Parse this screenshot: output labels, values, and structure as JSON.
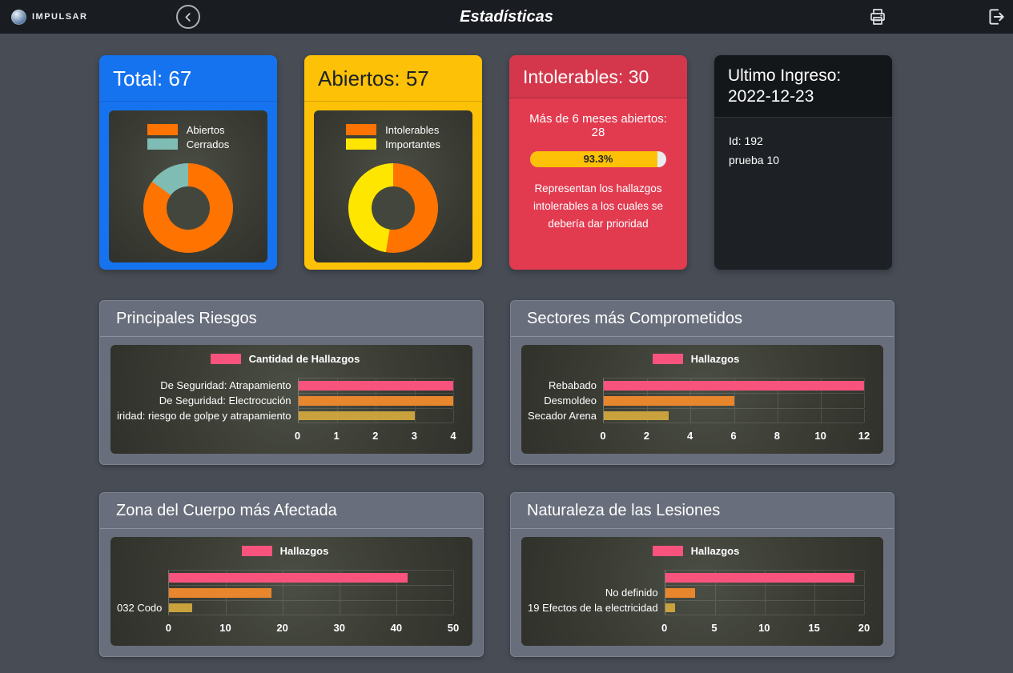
{
  "header": {
    "brand": "IMPULSAR",
    "title": "Estadísticas",
    "icons": {
      "back": "chevron-left",
      "print": "printer",
      "logout": "sign-out"
    }
  },
  "colors": {
    "page_bg": "#474c55",
    "header_bg": "#191c20",
    "card_total": "#1673f0",
    "card_abiertos": "#fdc107",
    "card_intolerables": "#e23b50",
    "card_ultimo": "#1d2125",
    "bar_pink": "#f8537d",
    "bar_orange": "#e8862d",
    "bar_gold": "#c9a23d",
    "donut_orange": "#ff7300",
    "donut_teal": "#7fbcb4",
    "donut_yellow": "#ffe600",
    "progress_fill": "#fdc107"
  },
  "cards": {
    "total": {
      "title": "Total: 67"
    },
    "abiertos": {
      "title": "Abiertos: 57"
    },
    "intolerables": {
      "title": "Intolerables: 30",
      "subtitle": "Más de 6 meses abiertos: 28",
      "progress": {
        "percent": 93.3,
        "label": "93.3%"
      },
      "note": "Representan los hallazgos intolerables a los cuales se debería dar prioridad"
    },
    "ultimo": {
      "title": "Ultimo Ingreso: 2022-12-23",
      "lines": [
        "Id: 192",
        "prueba 10"
      ]
    }
  },
  "panels": [
    {
      "title": "Principales Riesgos",
      "chart": 2
    },
    {
      "title": "Sectores más Comprometidos",
      "chart": 3
    },
    {
      "title": "Zona del Cuerpo más Afectada",
      "chart": 4
    },
    {
      "title": "Naturaleza de las Lesiones",
      "chart": 5
    }
  ],
  "chart_data": [
    {
      "id": "total-donut",
      "type": "pie",
      "donut": true,
      "title": "Total: 67",
      "categories": [
        "Abiertos",
        "Cerrados"
      ],
      "values": [
        57,
        10
      ],
      "colors": [
        "#ff7300",
        "#7fbcb4"
      ],
      "legend_position": "top"
    },
    {
      "id": "abiertos-donut",
      "type": "pie",
      "donut": true,
      "title": "Abiertos: 57",
      "categories": [
        "Intolerables",
        "Importantes"
      ],
      "values": [
        30,
        27
      ],
      "colors": [
        "#ff7300",
        "#ffe600"
      ],
      "legend_position": "top"
    },
    {
      "id": "principales-riesgos",
      "type": "bar",
      "orientation": "horizontal",
      "title": "Principales Riesgos",
      "legend": "Cantidad de Hallazgos",
      "legend_color": "#f8537d",
      "legend_position": "top",
      "categories": [
        "De Seguridad: Atrapamiento",
        "De Seguridad: Electrocución",
        "iridad: riesgo de golpe y atrapamiento"
      ],
      "values": [
        4,
        4,
        3
      ],
      "bar_colors": [
        "#f8537d",
        "#e8862d",
        "#c9a23d"
      ],
      "xlim": [
        0,
        4
      ],
      "xticks": [
        0,
        1,
        2,
        3,
        4
      ],
      "grid": true
    },
    {
      "id": "sectores-comprometidos",
      "type": "bar",
      "orientation": "horizontal",
      "title": "Sectores más Comprometidos",
      "legend": "Hallazgos",
      "legend_color": "#f8537d",
      "legend_position": "top",
      "categories": [
        "Rebabado",
        "Desmoldeo",
        "Secador Arena"
      ],
      "values": [
        12,
        6,
        3
      ],
      "bar_colors": [
        "#f8537d",
        "#e8862d",
        "#c9a23d"
      ],
      "xlim": [
        0,
        12
      ],
      "xticks": [
        0,
        2,
        4,
        6,
        8,
        10,
        12
      ],
      "grid": true
    },
    {
      "id": "zona-cuerpo",
      "type": "bar",
      "orientation": "horizontal",
      "title": "Zona del Cuerpo más Afectada",
      "legend": "Hallazgos",
      "legend_color": "#f8537d",
      "legend_position": "top",
      "categories": [
        "",
        "",
        "032 Codo"
      ],
      "values": [
        42,
        18,
        4
      ],
      "bar_colors": [
        "#f8537d",
        "#e8862d",
        "#c9a23d"
      ],
      "xlim": [
        0,
        50
      ],
      "xticks": [
        0,
        10,
        20,
        30,
        40,
        50
      ],
      "grid": true
    },
    {
      "id": "naturaleza-lesiones",
      "type": "bar",
      "orientation": "horizontal",
      "title": "Naturaleza de las Lesiones",
      "legend": "Hallazgos",
      "legend_color": "#f8537d",
      "legend_position": "top",
      "categories": [
        "",
        "No definido",
        "19 Efectos de la electricidad"
      ],
      "values": [
        19,
        3,
        1
      ],
      "bar_colors": [
        "#f8537d",
        "#e8862d",
        "#c9a23d"
      ],
      "xlim": [
        0,
        20
      ],
      "xticks": [
        0,
        5,
        10,
        15,
        20
      ],
      "grid": true
    }
  ]
}
